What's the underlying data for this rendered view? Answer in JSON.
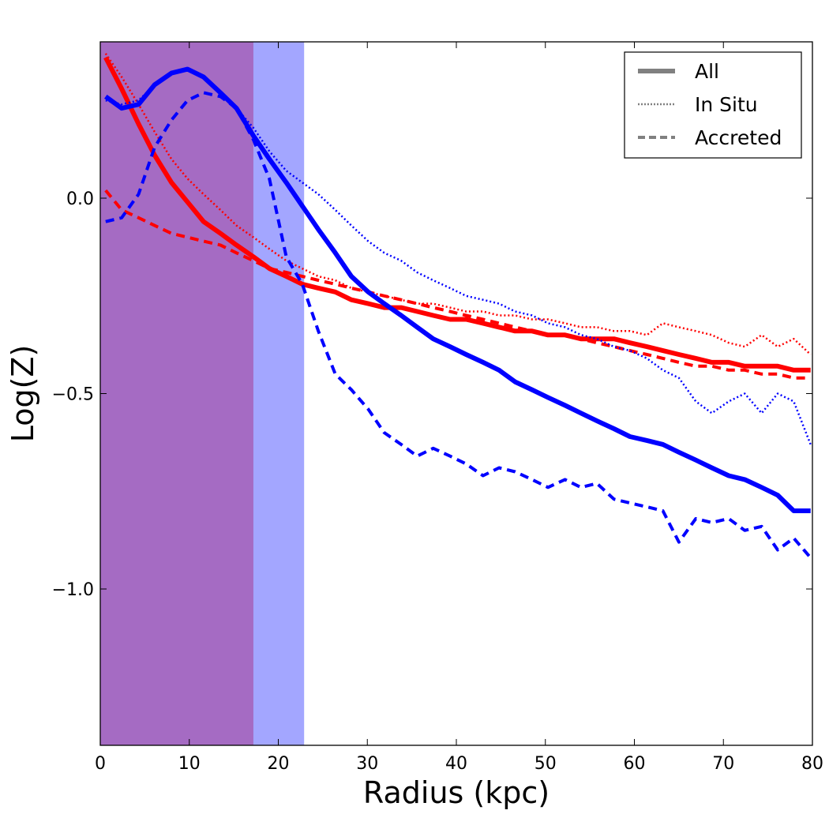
{
  "chart_data": {
    "type": "line",
    "title": "",
    "xlabel": "Radius (kpc)",
    "ylabel": "Log(Z)",
    "xlim": [
      0,
      80
    ],
    "ylim": [
      -1.4,
      0.4
    ],
    "xticks": [
      0,
      10,
      20,
      30,
      40,
      50,
      60,
      70,
      80
    ],
    "xtick_labels": [
      "0",
      "10",
      "20",
      "30",
      "40",
      "50",
      "60",
      "70",
      "80"
    ],
    "yticks": [
      0.0,
      -0.5,
      -1.0
    ],
    "ytick_labels": [
      "0.0",
      "−0.5",
      "−1.0"
    ],
    "shaded_regions": [
      {
        "name": "blue-region",
        "x0": 0,
        "x1": 22.9,
        "color": "#a3a6ff"
      },
      {
        "name": "red-region",
        "x0": 0,
        "x1": 17.2,
        "color": "#a56bc3"
      }
    ],
    "legend": {
      "position": "top-right",
      "entries": [
        {
          "label": "All",
          "style": "solid"
        },
        {
          "label": "In Situ",
          "style": "dotted"
        },
        {
          "label": "Accreted",
          "style": "dashed"
        }
      ]
    },
    "series": [
      {
        "name": "red-all",
        "color": "#ff0000",
        "style": "solid",
        "x": [
          0.6,
          2.4,
          4.3,
          6.1,
          8.0,
          9.8,
          11.6,
          13.5,
          15.3,
          17.2,
          19.0,
          20.9,
          22.7,
          24.5,
          26.4,
          28.2,
          30.1,
          31.9,
          33.8,
          35.6,
          37.4,
          39.3,
          41.1,
          43.0,
          44.8,
          46.6,
          48.5,
          50.3,
          52.2,
          54.0,
          55.8,
          57.7,
          59.5,
          61.4,
          63.2,
          65.0,
          66.9,
          68.7,
          70.6,
          72.4,
          74.3,
          76.1,
          77.9,
          79.8
        ],
        "y": [
          0.36,
          0.28,
          0.19,
          0.11,
          0.04,
          -0.01,
          -0.06,
          -0.09,
          -0.12,
          -0.15,
          -0.18,
          -0.2,
          -0.22,
          -0.23,
          -0.24,
          -0.26,
          -0.27,
          -0.28,
          -0.28,
          -0.29,
          -0.3,
          -0.31,
          -0.31,
          -0.32,
          -0.33,
          -0.34,
          -0.34,
          -0.35,
          -0.35,
          -0.36,
          -0.36,
          -0.36,
          -0.37,
          -0.38,
          -0.39,
          -0.4,
          -0.41,
          -0.42,
          -0.42,
          -0.43,
          -0.43,
          -0.43,
          -0.44,
          -0.44
        ]
      },
      {
        "name": "red-in-situ",
        "color": "#ff0000",
        "style": "dotted",
        "x": [
          0.6,
          2.4,
          4.3,
          6.1,
          8.0,
          9.8,
          11.6,
          13.5,
          15.3,
          17.2,
          19.0,
          20.9,
          22.7,
          24.5,
          26.4,
          28.2,
          30.1,
          31.9,
          33.8,
          35.6,
          37.4,
          39.3,
          41.1,
          43.0,
          44.8,
          46.6,
          48.5,
          50.3,
          52.2,
          54.0,
          55.8,
          57.7,
          59.5,
          61.4,
          63.2,
          65.0,
          66.9,
          68.7,
          70.6,
          72.4,
          74.3,
          76.1,
          77.9,
          79.8
        ],
        "y": [
          0.37,
          0.31,
          0.24,
          0.17,
          0.1,
          0.05,
          0.01,
          -0.03,
          -0.07,
          -0.1,
          -0.13,
          -0.16,
          -0.18,
          -0.2,
          -0.21,
          -0.23,
          -0.24,
          -0.25,
          -0.26,
          -0.27,
          -0.27,
          -0.28,
          -0.29,
          -0.29,
          -0.3,
          -0.3,
          -0.31,
          -0.31,
          -0.32,
          -0.33,
          -0.33,
          -0.34,
          -0.34,
          -0.35,
          -0.32,
          -0.33,
          -0.34,
          -0.35,
          -0.37,
          -0.38,
          -0.35,
          -0.38,
          -0.36,
          -0.4
        ]
      },
      {
        "name": "red-accreted",
        "color": "#ff0000",
        "style": "dashed",
        "x": [
          0.6,
          2.4,
          4.3,
          6.1,
          8.0,
          9.8,
          11.6,
          13.5,
          15.3,
          17.2,
          19.0,
          20.9,
          22.7,
          24.5,
          26.4,
          28.2,
          30.1,
          31.9,
          33.8,
          35.6,
          37.4,
          39.3,
          41.1,
          43.0,
          44.8,
          46.6,
          48.5,
          50.3,
          52.2,
          54.0,
          55.8,
          57.7,
          59.5,
          61.4,
          63.2,
          65.0,
          66.9,
          68.7,
          70.6,
          72.4,
          74.3,
          76.1,
          77.9,
          79.8
        ],
        "y": [
          0.02,
          -0.03,
          -0.05,
          -0.07,
          -0.09,
          -0.1,
          -0.11,
          -0.12,
          -0.14,
          -0.16,
          -0.18,
          -0.19,
          -0.2,
          -0.21,
          -0.22,
          -0.23,
          -0.24,
          -0.25,
          -0.26,
          -0.27,
          -0.28,
          -0.29,
          -0.3,
          -0.31,
          -0.32,
          -0.33,
          -0.34,
          -0.35,
          -0.35,
          -0.36,
          -0.37,
          -0.38,
          -0.39,
          -0.4,
          -0.41,
          -0.42,
          -0.43,
          -0.43,
          -0.44,
          -0.44,
          -0.45,
          -0.45,
          -0.46,
          -0.46
        ]
      },
      {
        "name": "blue-all",
        "color": "#0000ff",
        "style": "solid",
        "x": [
          0.6,
          2.4,
          4.3,
          6.1,
          8.0,
          9.8,
          11.6,
          13.5,
          15.3,
          17.2,
          19.0,
          20.9,
          22.7,
          24.5,
          26.4,
          28.2,
          30.1,
          31.9,
          33.8,
          35.6,
          37.4,
          39.3,
          41.1,
          43.0,
          44.8,
          46.6,
          48.5,
          50.3,
          52.2,
          54.0,
          55.8,
          57.7,
          59.5,
          61.4,
          63.2,
          65.0,
          66.9,
          68.7,
          70.6,
          72.4,
          74.3,
          76.1,
          77.9,
          79.8
        ],
        "y": [
          0.26,
          0.23,
          0.24,
          0.29,
          0.32,
          0.33,
          0.31,
          0.27,
          0.23,
          0.16,
          0.1,
          0.04,
          -0.02,
          -0.08,
          -0.14,
          -0.2,
          -0.24,
          -0.27,
          -0.3,
          -0.33,
          -0.36,
          -0.38,
          -0.4,
          -0.42,
          -0.44,
          -0.47,
          -0.49,
          -0.51,
          -0.53,
          -0.55,
          -0.57,
          -0.59,
          -0.61,
          -0.62,
          -0.63,
          -0.65,
          -0.67,
          -0.69,
          -0.71,
          -0.72,
          -0.74,
          -0.76,
          -0.8,
          -0.8
        ]
      },
      {
        "name": "blue-in-situ",
        "color": "#0000ff",
        "style": "dotted",
        "x": [
          0.6,
          2.4,
          4.3,
          6.1,
          8.0,
          9.8,
          11.6,
          13.5,
          15.3,
          17.2,
          19.0,
          20.9,
          22.7,
          24.5,
          26.4,
          28.2,
          30.1,
          31.9,
          33.8,
          35.6,
          37.4,
          39.3,
          41.1,
          43.0,
          44.8,
          46.6,
          48.5,
          50.3,
          52.2,
          54.0,
          55.8,
          57.7,
          59.5,
          61.4,
          63.2,
          65.0,
          66.9,
          68.7,
          70.6,
          72.4,
          74.3,
          76.1,
          77.9,
          79.8
        ],
        "y": [
          0.25,
          0.24,
          0.25,
          0.29,
          0.32,
          0.33,
          0.31,
          0.27,
          0.23,
          0.18,
          0.12,
          0.07,
          0.04,
          0.01,
          -0.03,
          -0.07,
          -0.11,
          -0.14,
          -0.16,
          -0.19,
          -0.21,
          -0.23,
          -0.25,
          -0.26,
          -0.27,
          -0.29,
          -0.3,
          -0.32,
          -0.33,
          -0.35,
          -0.36,
          -0.38,
          -0.39,
          -0.41,
          -0.44,
          -0.46,
          -0.52,
          -0.55,
          -0.52,
          -0.5,
          -0.55,
          -0.5,
          -0.52,
          -0.63
        ]
      },
      {
        "name": "blue-accreted",
        "color": "#0000ff",
        "style": "dashed",
        "x": [
          0.6,
          2.4,
          4.3,
          6.1,
          8.0,
          9.8,
          11.6,
          13.5,
          15.3,
          17.2,
          19.0,
          20.9,
          22.7,
          24.5,
          26.4,
          28.2,
          30.1,
          31.9,
          33.8,
          35.6,
          37.4,
          39.3,
          41.1,
          43.0,
          44.8,
          46.6,
          48.5,
          50.3,
          52.2,
          54.0,
          55.8,
          57.7,
          59.5,
          61.4,
          63.2,
          65.0,
          66.9,
          68.7,
          70.6,
          72.4,
          74.3,
          76.1,
          77.9,
          79.8
        ],
        "y": [
          -0.06,
          -0.05,
          0.01,
          0.13,
          0.2,
          0.25,
          0.27,
          0.26,
          0.23,
          0.15,
          0.05,
          -0.15,
          -0.22,
          -0.34,
          -0.45,
          -0.49,
          -0.54,
          -0.6,
          -0.63,
          -0.66,
          -0.64,
          -0.66,
          -0.68,
          -0.71,
          -0.69,
          -0.7,
          -0.72,
          -0.74,
          -0.72,
          -0.74,
          -0.73,
          -0.77,
          -0.78,
          -0.79,
          -0.8,
          -0.88,
          -0.82,
          -0.83,
          -0.82,
          -0.85,
          -0.84,
          -0.9,
          -0.87,
          -0.92
        ]
      }
    ]
  }
}
